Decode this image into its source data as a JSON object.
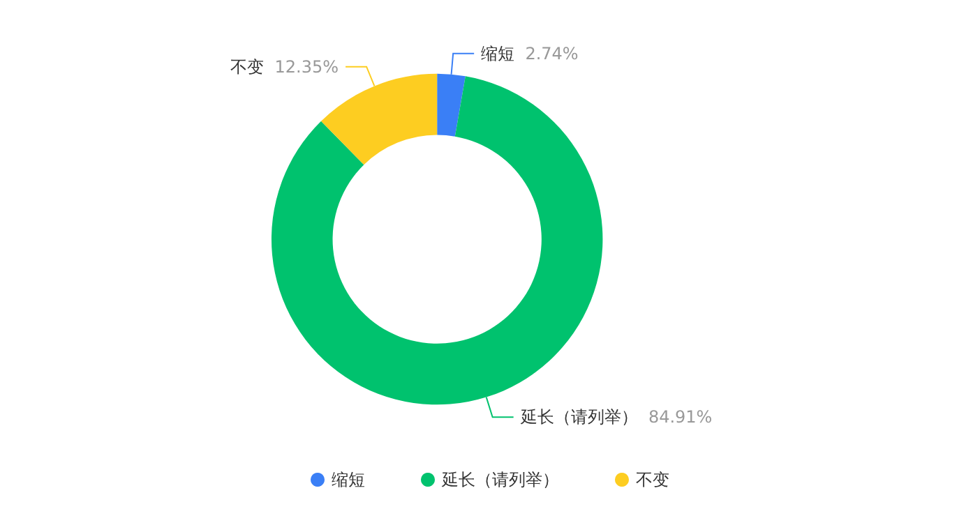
{
  "chart_data": {
    "type": "donut",
    "categories": [
      "缩短",
      "延长（请列举）",
      "不变"
    ],
    "values": [
      2.74,
      84.91,
      12.35
    ],
    "colors": [
      "#3a7ff6",
      "#00c26e",
      "#fdcd21"
    ],
    "value_labels": [
      "2.74%",
      "84.91%",
      "12.35%"
    ],
    "legend": "bottom"
  }
}
